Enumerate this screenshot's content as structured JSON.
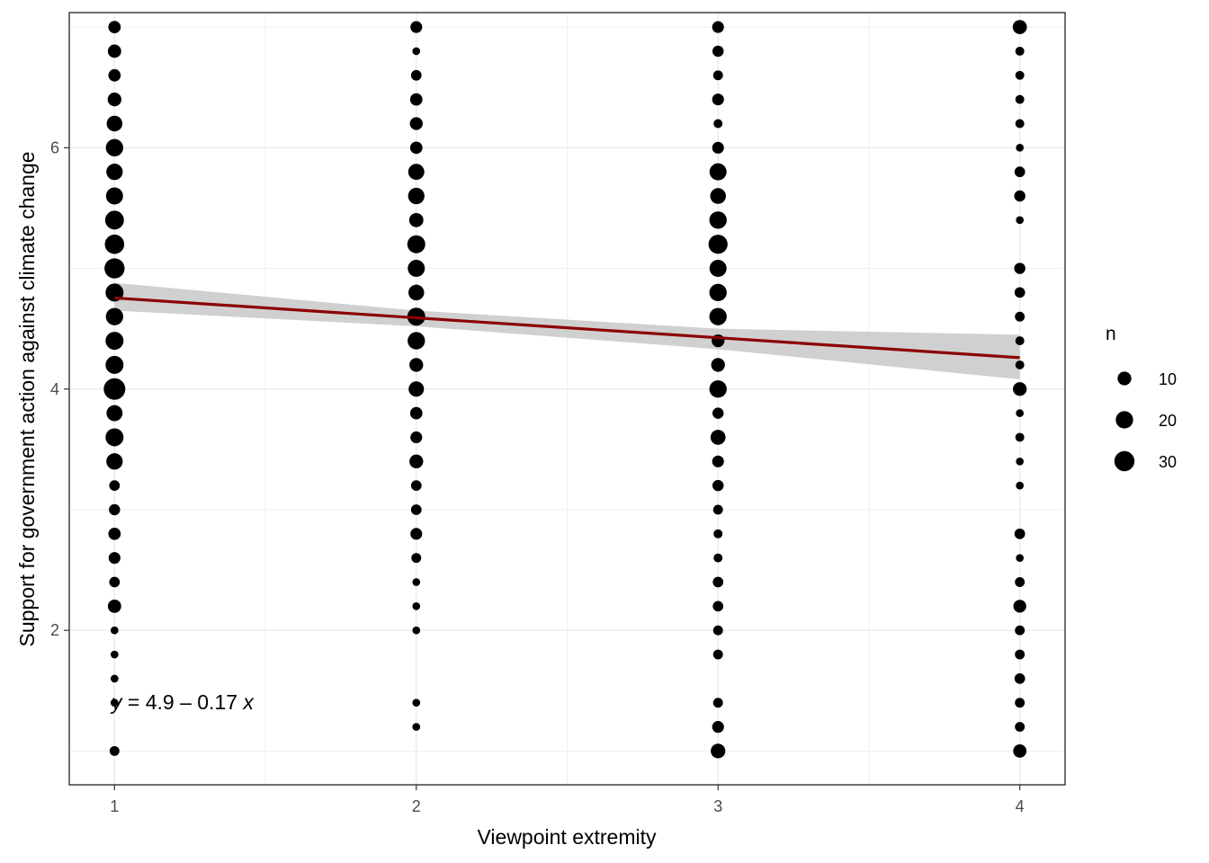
{
  "chart_data": {
    "type": "scatter",
    "xlabel": "Viewpoint extremity",
    "ylabel": "Support for government action against climate change",
    "xlim": [
      0.85,
      4.15
    ],
    "ylim": [
      0.72,
      7.12
    ],
    "x_ticks": [
      1,
      2,
      3,
      4
    ],
    "y_ticks": [
      2,
      4,
      6
    ],
    "x_tick_labels": [
      "1",
      "2",
      "3",
      "4"
    ],
    "y_tick_labels": [
      "2",
      "4",
      "6"
    ],
    "grid": true,
    "size_variable": "n",
    "legend": {
      "title": "n",
      "placement": "right",
      "entries": [
        {
          "value": 10,
          "label": "10"
        },
        {
          "value": 20,
          "label": "20"
        },
        {
          "value": 30,
          "label": "30"
        }
      ]
    },
    "points": [
      {
        "x": 1,
        "y": 7.0,
        "n": 7
      },
      {
        "x": 1,
        "y": 6.8,
        "n": 9
      },
      {
        "x": 1,
        "y": 6.6,
        "n": 7
      },
      {
        "x": 1,
        "y": 6.4,
        "n": 10
      },
      {
        "x": 1,
        "y": 6.2,
        "n": 15
      },
      {
        "x": 1,
        "y": 6.0,
        "n": 20
      },
      {
        "x": 1,
        "y": 5.8,
        "n": 17
      },
      {
        "x": 1,
        "y": 5.6,
        "n": 19
      },
      {
        "x": 1,
        "y": 5.4,
        "n": 25
      },
      {
        "x": 1,
        "y": 5.2,
        "n": 27
      },
      {
        "x": 1,
        "y": 5.0,
        "n": 30
      },
      {
        "x": 1,
        "y": 4.8,
        "n": 22
      },
      {
        "x": 1,
        "y": 4.6,
        "n": 20
      },
      {
        "x": 1,
        "y": 4.4,
        "n": 22
      },
      {
        "x": 1,
        "y": 4.2,
        "n": 22
      },
      {
        "x": 1,
        "y": 4.0,
        "n": 36
      },
      {
        "x": 1,
        "y": 3.8,
        "n": 16
      },
      {
        "x": 1,
        "y": 3.6,
        "n": 22
      },
      {
        "x": 1,
        "y": 3.4,
        "n": 17
      },
      {
        "x": 1,
        "y": 3.2,
        "n": 4
      },
      {
        "x": 1,
        "y": 3.0,
        "n": 5
      },
      {
        "x": 1,
        "y": 2.8,
        "n": 7
      },
      {
        "x": 1,
        "y": 2.6,
        "n": 6
      },
      {
        "x": 1,
        "y": 2.4,
        "n": 4
      },
      {
        "x": 1,
        "y": 2.2,
        "n": 9
      },
      {
        "x": 1,
        "y": 2.0,
        "n": 1
      },
      {
        "x": 1,
        "y": 1.8,
        "n": 1
      },
      {
        "x": 1,
        "y": 1.6,
        "n": 1
      },
      {
        "x": 1,
        "y": 1.4,
        "n": 1
      },
      {
        "x": 1,
        "y": 1.0,
        "n": 3
      },
      {
        "x": 2,
        "y": 7.0,
        "n": 6
      },
      {
        "x": 2,
        "y": 6.8,
        "n": 1
      },
      {
        "x": 2,
        "y": 6.6,
        "n": 4
      },
      {
        "x": 2,
        "y": 6.4,
        "n": 7
      },
      {
        "x": 2,
        "y": 6.2,
        "n": 8
      },
      {
        "x": 2,
        "y": 6.0,
        "n": 7
      },
      {
        "x": 2,
        "y": 5.8,
        "n": 16
      },
      {
        "x": 2,
        "y": 5.6,
        "n": 17
      },
      {
        "x": 2,
        "y": 5.4,
        "n": 11
      },
      {
        "x": 2,
        "y": 5.2,
        "n": 22
      },
      {
        "x": 2,
        "y": 5.0,
        "n": 19
      },
      {
        "x": 2,
        "y": 4.8,
        "n": 15
      },
      {
        "x": 2,
        "y": 4.6,
        "n": 22
      },
      {
        "x": 2,
        "y": 4.4,
        "n": 20
      },
      {
        "x": 2,
        "y": 4.2,
        "n": 10
      },
      {
        "x": 2,
        "y": 4.0,
        "n": 14
      },
      {
        "x": 2,
        "y": 3.8,
        "n": 7
      },
      {
        "x": 2,
        "y": 3.6,
        "n": 6
      },
      {
        "x": 2,
        "y": 3.4,
        "n": 10
      },
      {
        "x": 2,
        "y": 3.2,
        "n": 4
      },
      {
        "x": 2,
        "y": 3.0,
        "n": 4
      },
      {
        "x": 2,
        "y": 2.8,
        "n": 6
      },
      {
        "x": 2,
        "y": 2.6,
        "n": 3
      },
      {
        "x": 2,
        "y": 2.4,
        "n": 1
      },
      {
        "x": 2,
        "y": 2.2,
        "n": 1
      },
      {
        "x": 2,
        "y": 2.0,
        "n": 1
      },
      {
        "x": 2,
        "y": 1.4,
        "n": 1
      },
      {
        "x": 2,
        "y": 1.2,
        "n": 1
      },
      {
        "x": 3,
        "y": 7.0,
        "n": 6
      },
      {
        "x": 3,
        "y": 6.8,
        "n": 5
      },
      {
        "x": 3,
        "y": 6.6,
        "n": 3
      },
      {
        "x": 3,
        "y": 6.4,
        "n": 6
      },
      {
        "x": 3,
        "y": 6.2,
        "n": 2
      },
      {
        "x": 3,
        "y": 6.0,
        "n": 6
      },
      {
        "x": 3,
        "y": 5.8,
        "n": 19
      },
      {
        "x": 3,
        "y": 5.6,
        "n": 15
      },
      {
        "x": 3,
        "y": 5.4,
        "n": 20
      },
      {
        "x": 3,
        "y": 5.2,
        "n": 26
      },
      {
        "x": 3,
        "y": 5.0,
        "n": 19
      },
      {
        "x": 3,
        "y": 4.8,
        "n": 20
      },
      {
        "x": 3,
        "y": 4.6,
        "n": 20
      },
      {
        "x": 3,
        "y": 4.4,
        "n": 8
      },
      {
        "x": 3,
        "y": 4.2,
        "n": 10
      },
      {
        "x": 3,
        "y": 4.0,
        "n": 20
      },
      {
        "x": 3,
        "y": 3.8,
        "n": 5
      },
      {
        "x": 3,
        "y": 3.6,
        "n": 13
      },
      {
        "x": 3,
        "y": 3.4,
        "n": 6
      },
      {
        "x": 3,
        "y": 3.2,
        "n": 5
      },
      {
        "x": 3,
        "y": 3.0,
        "n": 3
      },
      {
        "x": 3,
        "y": 2.8,
        "n": 2
      },
      {
        "x": 3,
        "y": 2.6,
        "n": 2
      },
      {
        "x": 3,
        "y": 2.4,
        "n": 4
      },
      {
        "x": 3,
        "y": 2.2,
        "n": 4
      },
      {
        "x": 3,
        "y": 2.0,
        "n": 3
      },
      {
        "x": 3,
        "y": 1.8,
        "n": 3
      },
      {
        "x": 3,
        "y": 1.4,
        "n": 3
      },
      {
        "x": 3,
        "y": 1.2,
        "n": 6
      },
      {
        "x": 3,
        "y": 1.0,
        "n": 12
      },
      {
        "x": 4,
        "y": 7.0,
        "n": 11
      },
      {
        "x": 4,
        "y": 6.8,
        "n": 2
      },
      {
        "x": 4,
        "y": 6.6,
        "n": 2
      },
      {
        "x": 4,
        "y": 6.4,
        "n": 2
      },
      {
        "x": 4,
        "y": 6.2,
        "n": 2
      },
      {
        "x": 4,
        "y": 6.0,
        "n": 1
      },
      {
        "x": 4,
        "y": 5.8,
        "n": 4
      },
      {
        "x": 4,
        "y": 5.6,
        "n": 5
      },
      {
        "x": 4,
        "y": 5.4,
        "n": 1
      },
      {
        "x": 4,
        "y": 5.0,
        "n": 5
      },
      {
        "x": 4,
        "y": 4.8,
        "n": 4
      },
      {
        "x": 4,
        "y": 4.6,
        "n": 3
      },
      {
        "x": 4,
        "y": 4.4,
        "n": 2
      },
      {
        "x": 4,
        "y": 4.2,
        "n": 2
      },
      {
        "x": 4,
        "y": 4.0,
        "n": 10
      },
      {
        "x": 4,
        "y": 3.8,
        "n": 1
      },
      {
        "x": 4,
        "y": 3.6,
        "n": 2
      },
      {
        "x": 4,
        "y": 3.4,
        "n": 1
      },
      {
        "x": 4,
        "y": 3.2,
        "n": 1
      },
      {
        "x": 4,
        "y": 2.8,
        "n": 4
      },
      {
        "x": 4,
        "y": 2.6,
        "n": 1
      },
      {
        "x": 4,
        "y": 2.4,
        "n": 3
      },
      {
        "x": 4,
        "y": 2.2,
        "n": 8
      },
      {
        "x": 4,
        "y": 2.0,
        "n": 3
      },
      {
        "x": 4,
        "y": 1.8,
        "n": 3
      },
      {
        "x": 4,
        "y": 1.6,
        "n": 4
      },
      {
        "x": 4,
        "y": 1.4,
        "n": 3
      },
      {
        "x": 4,
        "y": 1.2,
        "n": 3
      },
      {
        "x": 4,
        "y": 1.0,
        "n": 9
      }
    ],
    "regression": {
      "intercept": 4.92,
      "slope": -0.165,
      "x_range": [
        1,
        4
      ],
      "ci_lower": [
        4.65,
        4.52,
        4.33,
        4.08
      ],
      "ci_upper": [
        4.88,
        4.65,
        4.5,
        4.45
      ],
      "ci_x": [
        1,
        2,
        3,
        4
      ],
      "line_color": "#8B0000",
      "ci_color": "#c8c8c8",
      "equation_parts": {
        "y": "y",
        "rest": " = 4.9 – 0.17 ",
        "x": "x"
      }
    },
    "point_color": "#000000",
    "grid_color": "#ebebeb",
    "panel_border_color": "#333333"
  }
}
